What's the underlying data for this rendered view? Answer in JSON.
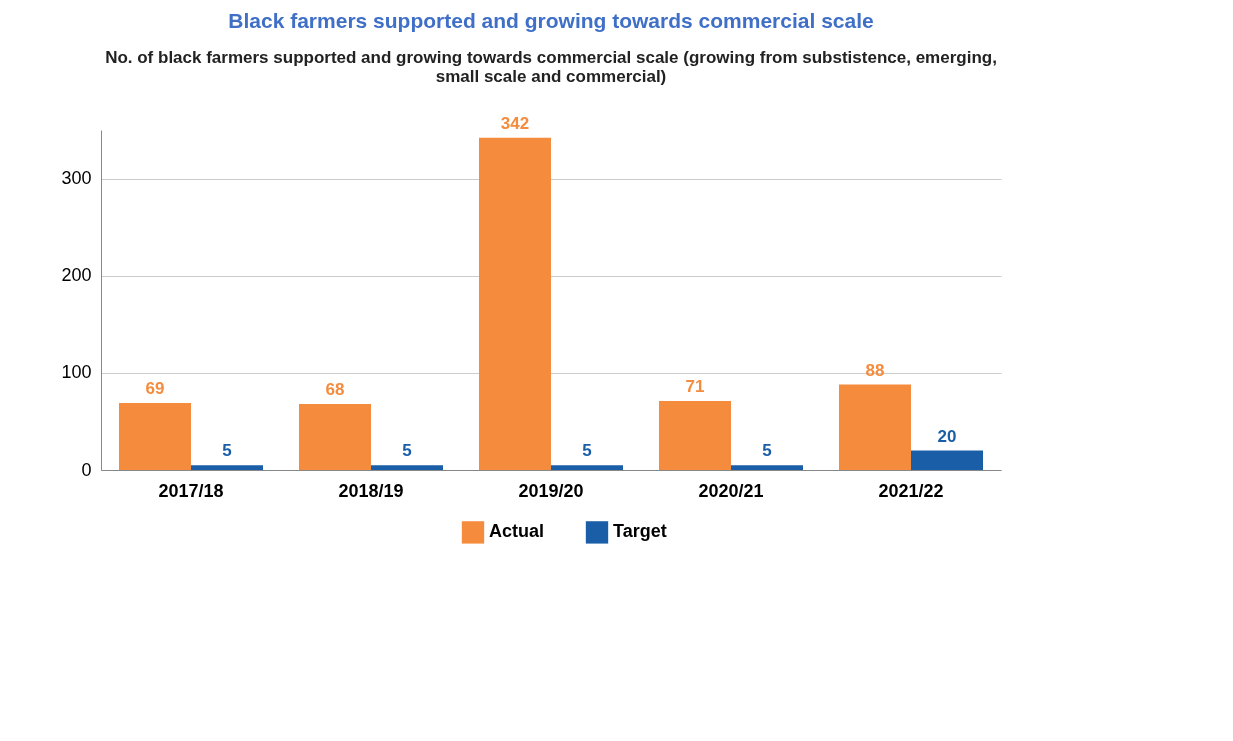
{
  "chart_data": {
    "type": "bar",
    "title": "Black farmers supported and growing towards commercial scale",
    "subtitle": "No. of black farmers supported and growing towards commercial scale (growing from substistence, emerging, small scale and commercial)",
    "categories": [
      "2017/18",
      "2018/19",
      "2019/20",
      "2020/21",
      "2021/22"
    ],
    "series": [
      {
        "name": "Actual",
        "color": "#f58b3c",
        "values": [
          69,
          68,
          342,
          71,
          88
        ]
      },
      {
        "name": "Target",
        "color": "#1b5ea8",
        "values": [
          5,
          5,
          5,
          5,
          20
        ]
      }
    ],
    "ylim": [
      0,
      350
    ],
    "yticks": [
      0,
      100,
      200,
      300
    ],
    "grid": "y",
    "legend": "bottom",
    "data_labels": true
  }
}
